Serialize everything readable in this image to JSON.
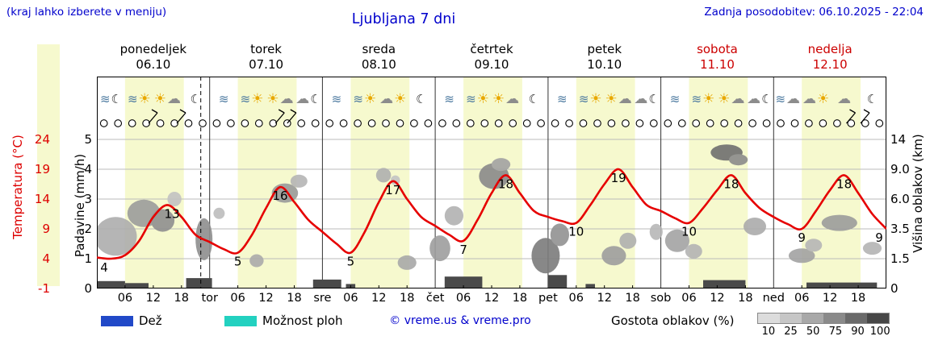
{
  "header": {
    "hint": "(kraj lahko izberete v meniju)",
    "title": "Ljubljana 7 dni",
    "updated": "Zadnja posodobitev: 06.10.2025 - 22:04"
  },
  "days": [
    {
      "name": "ponedeljek",
      "date": "06.10",
      "abbr": "",
      "weekend": false,
      "icons": [
        "fog+moon",
        "fog+sun",
        "sun+cloud",
        "moon"
      ]
    },
    {
      "name": "torek",
      "date": "07.10",
      "abbr": "tor",
      "weekend": false,
      "icons": [
        "fog",
        "fog+sun",
        "sun+cloud",
        "cloud+moon"
      ]
    },
    {
      "name": "sreda",
      "date": "08.10",
      "abbr": "sre",
      "weekend": false,
      "icons": [
        "fog",
        "fog+sun",
        "cloud+sun",
        "moon"
      ]
    },
    {
      "name": "četrtek",
      "date": "09.10",
      "abbr": "čet",
      "weekend": false,
      "icons": [
        "fog",
        "fog+sun",
        "sun+cloud",
        "moon"
      ]
    },
    {
      "name": "petek",
      "date": "10.10",
      "abbr": "pet",
      "weekend": false,
      "icons": [
        "fog",
        "fog+sun",
        "sun+cloud",
        "cloud+moon"
      ]
    },
    {
      "name": "sobota",
      "date": "11.10",
      "abbr": "sob",
      "weekend": true,
      "icons": [
        "fog",
        "fog+sun",
        "sun+cloud",
        "cloud+moon"
      ]
    },
    {
      "name": "nedelja",
      "date": "12.10",
      "abbr": "ned",
      "weekend": true,
      "icons": [
        "fog+cloud",
        "cloud+sun",
        "cloud",
        "moon"
      ]
    }
  ],
  "axes": {
    "temperature": {
      "label": "Temperatura (°C)",
      "ticks": [
        "24",
        "19",
        "14",
        "9",
        "4",
        "-1"
      ],
      "color": "#dd0000"
    },
    "precipitation": {
      "label": "Padavine (mm/h)",
      "ticks": [
        "5",
        "4",
        "3",
        "2",
        "1",
        "0"
      ]
    },
    "cloud_height": {
      "label": "Višina oblakov (km)",
      "ticks": [
        "14",
        "9.0",
        "6.0",
        "3.5",
        "1.5",
        "0"
      ]
    }
  },
  "x_hour_labels": [
    "06",
    "12",
    "18"
  ],
  "legend": {
    "rain": "Dež",
    "rain_color": "#2149c8",
    "showers": "Možnost ploh",
    "showers_color": "#23d1c0",
    "copyright": "© vreme.us & vreme.pro",
    "cloud_density": "Gostota oblakov (%)",
    "density_ticks": [
      "10",
      "25",
      "50",
      "75",
      "90",
      "100"
    ],
    "density_colors": [
      "#dcdcdc",
      "#c6c6c6",
      "#a8a8a8",
      "#8a8a8a",
      "#6a6a6a",
      "#474747"
    ]
  },
  "icon_glyphs": {
    "fog": "≋",
    "sun": "☀",
    "cloud": "☁",
    "moon": "☾"
  },
  "chart_data": {
    "type": "line",
    "title": "Ljubljana 7 dni",
    "x_axis": {
      "unit": "hours from Monday 00:00",
      "range": [
        0,
        168
      ],
      "day_length_hours": 24
    },
    "temperature": {
      "unit": "°C",
      "axis_range": [
        -1,
        24
      ],
      "color": "#e60000",
      "points": [
        [
          0,
          4.2
        ],
        [
          3,
          4.0
        ],
        [
          6,
          4.6
        ],
        [
          9,
          7.0
        ],
        [
          12,
          11.0
        ],
        [
          15,
          13.0
        ],
        [
          18,
          11.0
        ],
        [
          21,
          8.0
        ],
        [
          24,
          6.8
        ],
        [
          27,
          5.6
        ],
        [
          30,
          5.0
        ],
        [
          33,
          8.0
        ],
        [
          36,
          12.5
        ],
        [
          39,
          16.0
        ],
        [
          42,
          13.5
        ],
        [
          45,
          10.5
        ],
        [
          48,
          8.5
        ],
        [
          51,
          6.5
        ],
        [
          54,
          5.0
        ],
        [
          57,
          8.5
        ],
        [
          60,
          13.5
        ],
        [
          63,
          17.0
        ],
        [
          66,
          14.0
        ],
        [
          69,
          11.0
        ],
        [
          72,
          9.5
        ],
        [
          75,
          8.0
        ],
        [
          78,
          7.0
        ],
        [
          81,
          10.5
        ],
        [
          84,
          15.0
        ],
        [
          87,
          18.0
        ],
        [
          90,
          15.0
        ],
        [
          93,
          12.0
        ],
        [
          96,
          11.0
        ],
        [
          99,
          10.3
        ],
        [
          102,
          10.0
        ],
        [
          105,
          13.0
        ],
        [
          108,
          16.5
        ],
        [
          111,
          19.0
        ],
        [
          114,
          16.0
        ],
        [
          117,
          13.0
        ],
        [
          120,
          12.0
        ],
        [
          123,
          10.8
        ],
        [
          126,
          10.0
        ],
        [
          129,
          12.5
        ],
        [
          132,
          15.5
        ],
        [
          135,
          18.0
        ],
        [
          138,
          15.0
        ],
        [
          141,
          12.5
        ],
        [
          144,
          11.0
        ],
        [
          147,
          9.8
        ],
        [
          150,
          9.0
        ],
        [
          153,
          12.0
        ],
        [
          156,
          15.5
        ],
        [
          159,
          18.0
        ],
        [
          162,
          15.0
        ],
        [
          165,
          11.5
        ],
        [
          168,
          9.0
        ]
      ],
      "labels": [
        [
          0.8,
          4,
          "4"
        ],
        [
          16,
          13,
          "13"
        ],
        [
          30,
          5,
          "5"
        ],
        [
          39,
          16,
          "16"
        ],
        [
          54,
          5,
          "5"
        ],
        [
          63,
          17,
          "17"
        ],
        [
          78,
          7,
          "7"
        ],
        [
          87,
          18,
          "18"
        ],
        [
          102,
          10,
          "10"
        ],
        [
          111,
          19,
          "19"
        ],
        [
          126,
          10,
          "10"
        ],
        [
          135,
          18,
          "18"
        ],
        [
          150,
          9,
          "9"
        ],
        [
          159,
          18,
          "18"
        ],
        [
          167,
          9,
          "9"
        ]
      ]
    },
    "precipitation": {
      "unit": "mm/h",
      "axis_range": [
        0,
        5
      ],
      "bar_color": "#4a4a4a",
      "bars": [
        [
          0,
          6,
          0.25
        ],
        [
          6,
          11,
          0.18
        ],
        [
          19,
          24.5,
          0.35
        ],
        [
          46,
          52,
          0.3
        ],
        [
          53,
          55,
          0.15
        ],
        [
          74,
          82,
          0.4
        ],
        [
          96,
          100,
          0.45
        ],
        [
          104,
          106,
          0.15
        ],
        [
          129,
          138,
          0.28
        ],
        [
          151,
          166,
          0.2
        ]
      ]
    },
    "cloud_height_axis": {
      "unit": "km",
      "ticks": [
        0,
        1.5,
        3.5,
        6,
        9,
        14
      ]
    },
    "clouds": [
      [
        4,
        3,
        4.5,
        24,
        "#adadad"
      ],
      [
        10,
        4.8,
        3.5,
        17,
        "#9c9c9c"
      ],
      [
        14,
        4.2,
        2.5,
        14,
        "#8f8f8f"
      ],
      [
        16.5,
        6,
        1.5,
        9,
        "#c2c2c2"
      ],
      [
        22.8,
        2.8,
        1.8,
        26,
        "#8f8f8f"
      ],
      [
        26,
        4.8,
        1.2,
        7,
        "#bdbdbd"
      ],
      [
        34,
        1.4,
        1.5,
        8,
        "#ababab"
      ],
      [
        40,
        6.6,
        2.8,
        12,
        "#9a9a9a"
      ],
      [
        43,
        7.8,
        1.8,
        8,
        "#b5b5b5"
      ],
      [
        61,
        8.4,
        1.6,
        9,
        "#b0b0b0"
      ],
      [
        63.5,
        7.9,
        1.0,
        6,
        "#c4c4c4"
      ],
      [
        66,
        1.3,
        2.0,
        9,
        "#a8a8a8"
      ],
      [
        73,
        2.2,
        2.2,
        16,
        "#9e9e9e"
      ],
      [
        76,
        4.6,
        2.0,
        12,
        "#b2b2b2"
      ],
      [
        84.5,
        8.3,
        3.2,
        16,
        "#8a8a8a"
      ],
      [
        86,
        9.8,
        2.0,
        8,
        "#a2a2a2"
      ],
      [
        95.5,
        1.7,
        3.0,
        22,
        "#7c7c7c"
      ],
      [
        98.5,
        3.1,
        2.0,
        14,
        "#929292"
      ],
      [
        110,
        1.7,
        2.6,
        12,
        "#9e9e9e"
      ],
      [
        113,
        2.7,
        1.8,
        10,
        "#b0b0b0"
      ],
      [
        119,
        3.3,
        1.4,
        10,
        "#b8b8b8"
      ],
      [
        123.5,
        2.7,
        2.6,
        14,
        "#a4a4a4"
      ],
      [
        127,
        2.0,
        1.8,
        9,
        "#b4b4b4"
      ],
      [
        134,
        11.8,
        3.4,
        10,
        "#6f6f6f"
      ],
      [
        136.5,
        10.6,
        2.0,
        7,
        "#8b8b8b"
      ],
      [
        140,
        3.7,
        2.4,
        11,
        "#ababab"
      ],
      [
        150,
        1.7,
        2.8,
        9,
        "#a2a2a2"
      ],
      [
        152.5,
        2.4,
        1.8,
        8,
        "#b6b6b6"
      ],
      [
        158,
        4.0,
        3.8,
        10,
        "#9c9c9c"
      ],
      [
        165,
        2.2,
        2.0,
        8,
        "#b4b4b4"
      ]
    ],
    "day_bands": [
      [
        6,
        18.5
      ],
      [
        30,
        42.5
      ],
      [
        54,
        66.5
      ],
      [
        78,
        90.5
      ],
      [
        102,
        114.5
      ],
      [
        126,
        138.5
      ],
      [
        150,
        162.5
      ]
    ],
    "day_band_color": "#f6f9ce",
    "now_line_hour": 22.1,
    "cloud_cover_circles": {
      "start_hour": 1.5,
      "interval_hours": 3,
      "count": 56
    },
    "wind_barb_hours": [
      11,
      17,
      38,
      40.5,
      159.5,
      162.5
    ]
  }
}
